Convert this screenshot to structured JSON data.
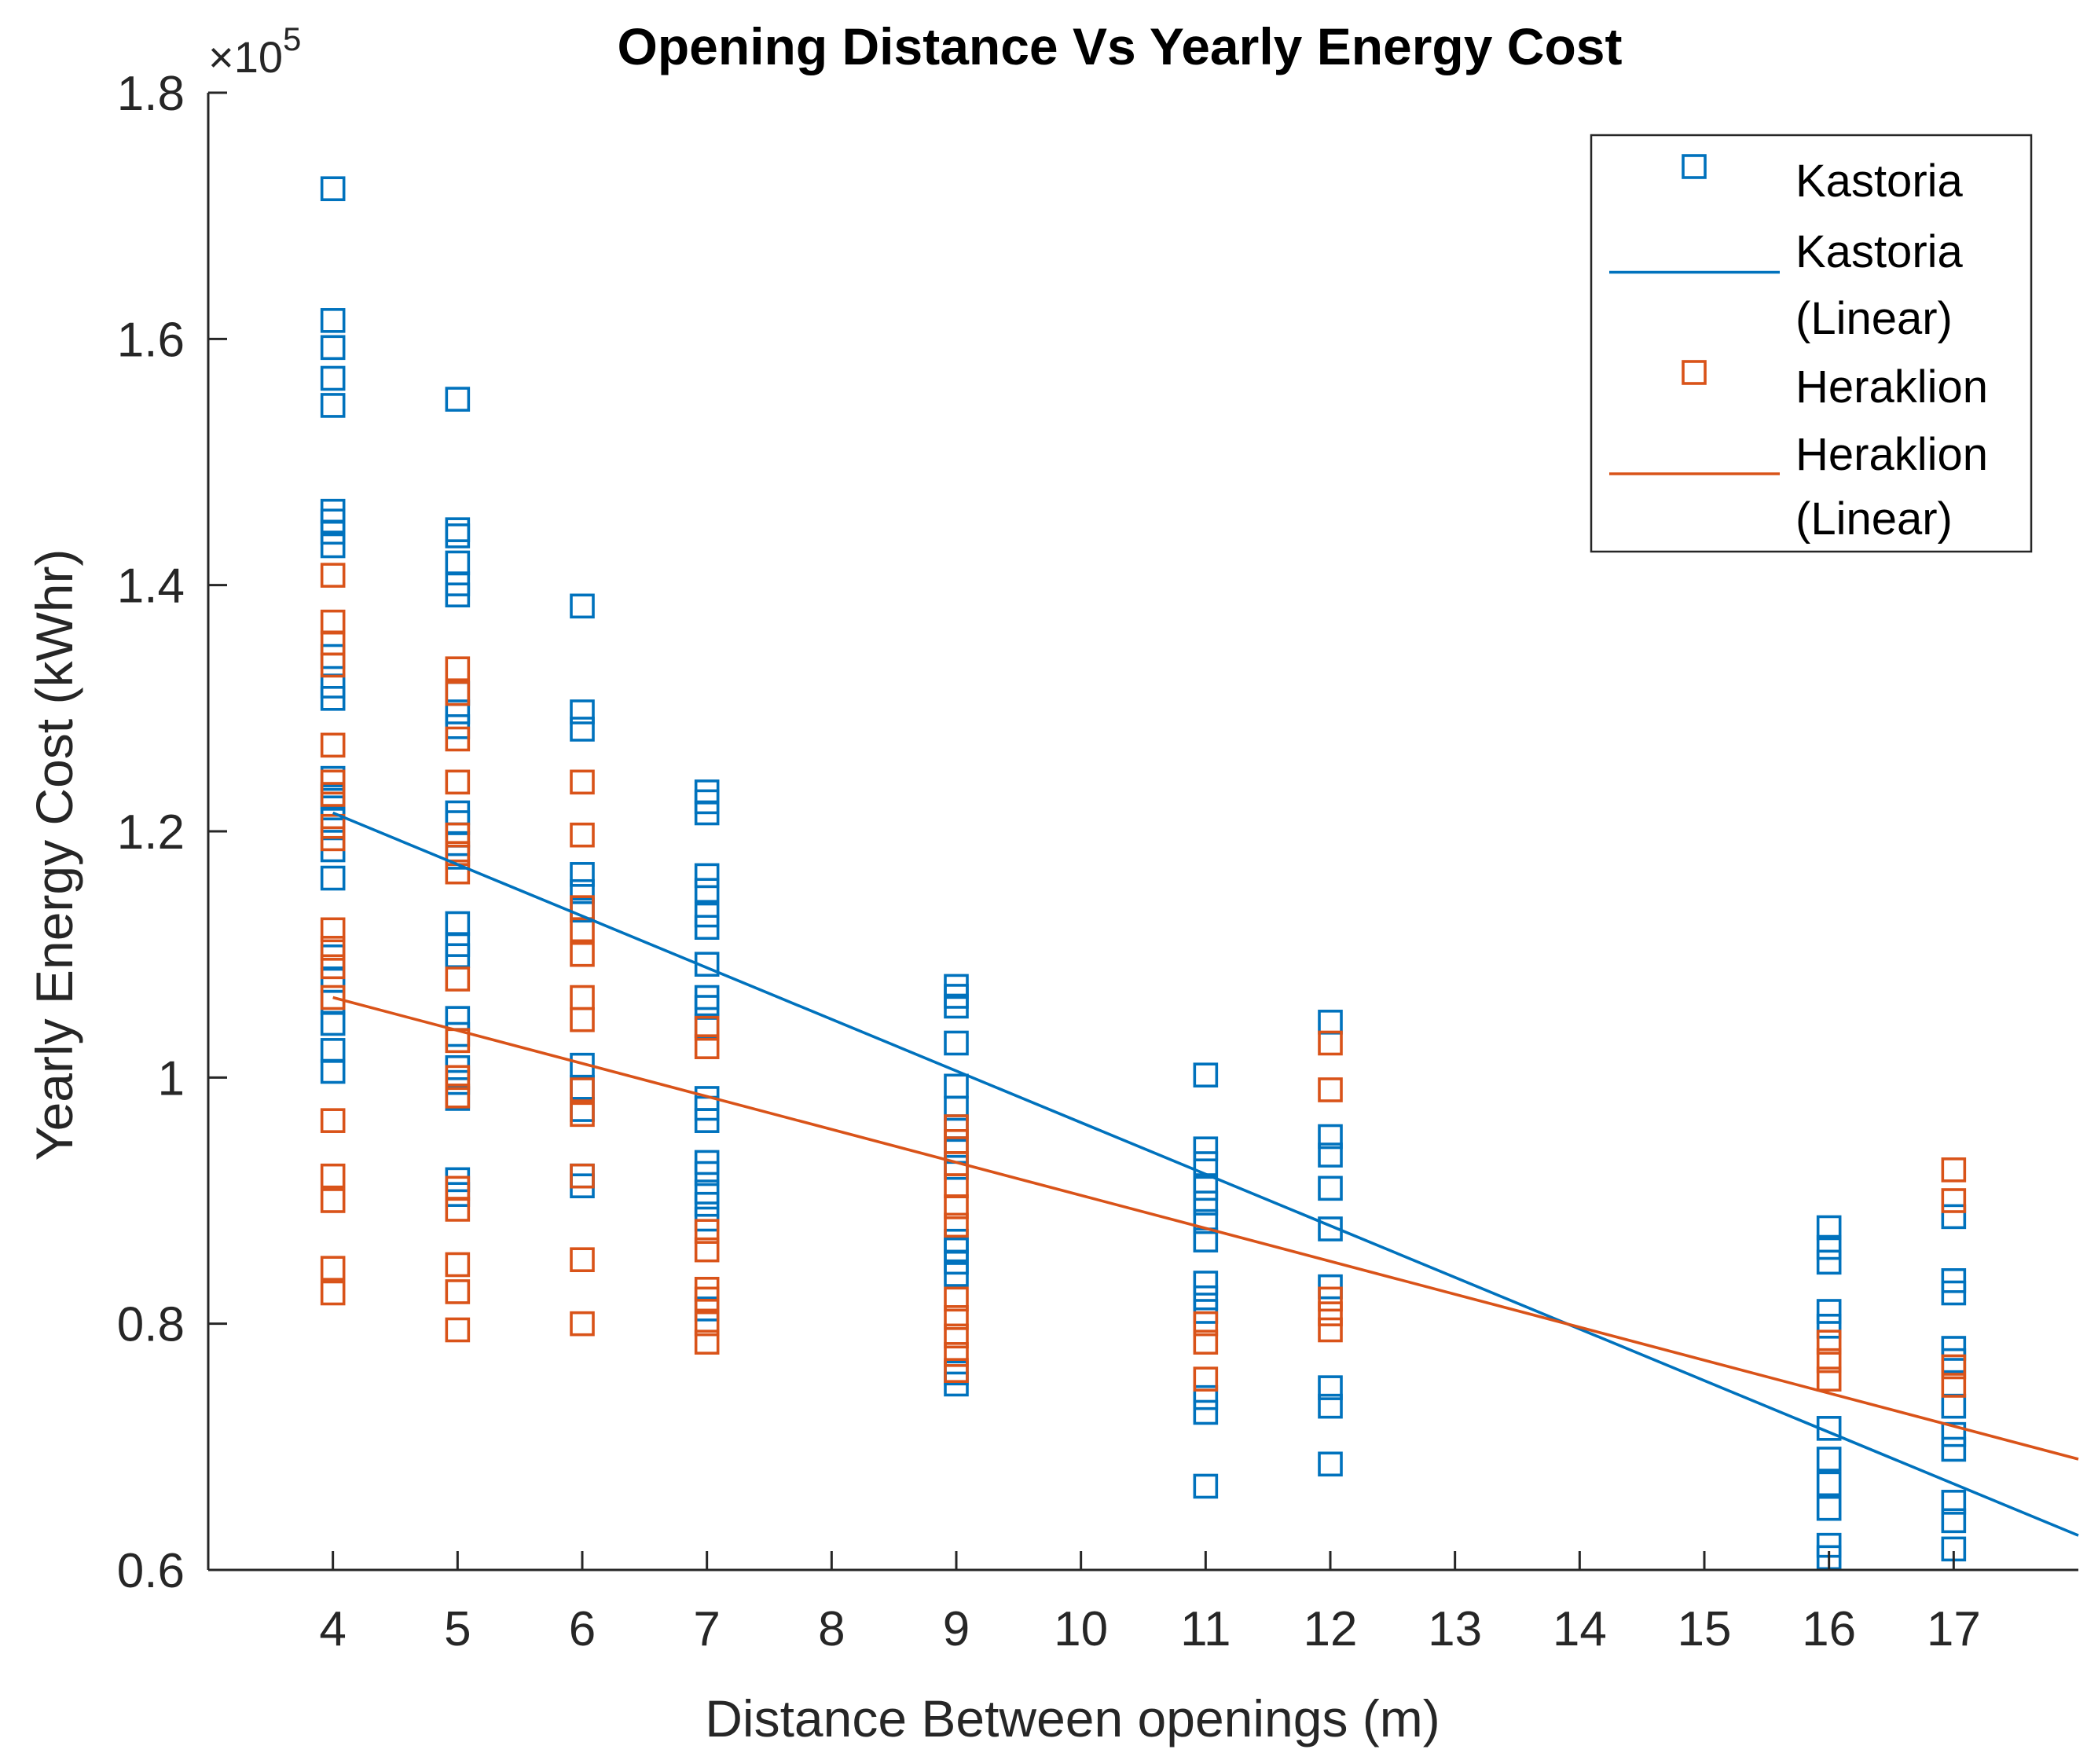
{
  "chart_data": {
    "type": "scatter",
    "title": "Opening Distance Vs Yearly Energy Cost",
    "xlabel": "Distance Between openings (m)",
    "ylabel": "Yearly Energy Cost (kWhr)",
    "exponent": {
      "base": "×10",
      "power": "5"
    },
    "xlim": [
      3,
      18
    ],
    "ylim": [
      0.6,
      1.8
    ],
    "xticks": [
      4,
      5,
      6,
      7,
      8,
      9,
      10,
      11,
      12,
      13,
      14,
      15,
      16,
      17
    ],
    "yticks": [
      0.6,
      0.8,
      1,
      1.2,
      1.4,
      1.6,
      1.8
    ],
    "ytick_labels": [
      "0.6",
      "0.8",
      "1",
      "1.2",
      "1.4",
      "1.6",
      "1.8"
    ],
    "colors": {
      "kastoria": "#0072BD",
      "heraklion": "#D95319"
    },
    "legend_position": "top-right",
    "legend": [
      {
        "key": "kastoria",
        "kind": "marker",
        "label": "Kastoria"
      },
      {
        "key": "kastoria",
        "kind": "line",
        "label": "Kastoria",
        "label2": "(Linear)"
      },
      {
        "key": "heraklion",
        "kind": "marker",
        "label": "Heraklion"
      },
      {
        "key": "heraklion",
        "kind": "line",
        "label": "Heraklion",
        "label2": "(Linear)"
      }
    ],
    "series": [
      {
        "name": "Kastoria",
        "key": "kastoria",
        "points": [
          [
            4,
            1.722
          ],
          [
            4,
            1.615
          ],
          [
            4,
            1.593
          ],
          [
            4,
            1.568
          ],
          [
            4,
            1.546
          ],
          [
            4,
            1.46
          ],
          [
            4,
            1.452
          ],
          [
            4,
            1.443
          ],
          [
            4,
            1.432
          ],
          [
            4,
            1.342
          ],
          [
            4,
            1.318
          ],
          [
            4,
            1.308
          ],
          [
            4,
            1.243
          ],
          [
            4,
            1.228
          ],
          [
            4,
            1.219
          ],
          [
            4,
            1.209
          ],
          [
            4,
            1.185
          ],
          [
            4,
            1.162
          ],
          [
            4,
            1.098
          ],
          [
            4,
            1.079
          ],
          [
            4,
            1.061
          ],
          [
            4,
            1.044
          ],
          [
            4,
            1.022
          ],
          [
            4,
            1.005
          ],
          [
            5,
            1.551
          ],
          [
            5,
            1.445
          ],
          [
            5,
            1.44
          ],
          [
            5,
            1.418
          ],
          [
            5,
            1.401
          ],
          [
            5,
            1.392
          ],
          [
            5,
            1.312
          ],
          [
            5,
            1.297
          ],
          [
            5,
            1.285
          ],
          [
            5,
            1.215
          ],
          [
            5,
            1.207
          ],
          [
            5,
            1.19
          ],
          [
            5,
            1.179
          ],
          [
            5,
            1.125
          ],
          [
            5,
            1.108
          ],
          [
            5,
            1.099
          ],
          [
            5,
            1.048
          ],
          [
            5,
            1.035
          ],
          [
            5,
            1.008
          ],
          [
            5,
            0.996
          ],
          [
            5,
            0.983
          ],
          [
            5,
            0.917
          ],
          [
            5,
            0.905
          ],
          [
            6,
            1.383
          ],
          [
            6,
            1.297
          ],
          [
            6,
            1.283
          ],
          [
            6,
            1.165
          ],
          [
            6,
            1.151
          ],
          [
            6,
            1.136
          ],
          [
            6,
            1.01
          ],
          [
            6,
            0.992
          ],
          [
            6,
            0.974
          ],
          [
            6,
            0.92
          ],
          [
            6,
            0.912
          ],
          [
            7,
            1.232
          ],
          [
            7,
            1.224
          ],
          [
            7,
            1.215
          ],
          [
            7,
            1.164
          ],
          [
            7,
            1.152
          ],
          [
            7,
            1.132
          ],
          [
            7,
            1.122
          ],
          [
            7,
            1.092
          ],
          [
            7,
            1.065
          ],
          [
            7,
            1.057
          ],
          [
            7,
            1.042
          ],
          [
            7,
            0.983
          ],
          [
            7,
            0.975
          ],
          [
            7,
            0.965
          ],
          [
            7,
            0.931
          ],
          [
            7,
            0.922
          ],
          [
            7,
            0.907
          ],
          [
            7,
            0.897
          ],
          [
            7,
            0.885
          ],
          [
            7,
            0.812
          ],
          [
            9,
            1.074
          ],
          [
            9,
            1.066
          ],
          [
            9,
            1.058
          ],
          [
            9,
            1.028
          ],
          [
            9,
            0.993
          ],
          [
            9,
            0.975
          ],
          [
            9,
            0.96
          ],
          [
            9,
            0.94
          ],
          [
            9,
            0.927
          ],
          [
            9,
            0.867
          ],
          [
            9,
            0.86
          ],
          [
            9,
            0.85
          ],
          [
            9,
            0.84
          ],
          [
            9,
            0.76
          ],
          [
            9,
            0.751
          ],
          [
            11,
            1.002
          ],
          [
            11,
            0.942
          ],
          [
            11,
            0.93
          ],
          [
            11,
            0.91
          ],
          [
            11,
            0.898
          ],
          [
            11,
            0.883
          ],
          [
            11,
            0.868
          ],
          [
            11,
            0.833
          ],
          [
            11,
            0.821
          ],
          [
            11,
            0.81
          ],
          [
            11,
            0.74
          ],
          [
            11,
            0.728
          ],
          [
            11,
            0.668
          ],
          [
            12,
            1.045
          ],
          [
            12,
            0.952
          ],
          [
            12,
            0.937
          ],
          [
            12,
            0.91
          ],
          [
            12,
            0.877
          ],
          [
            12,
            0.83
          ],
          [
            12,
            0.748
          ],
          [
            12,
            0.733
          ],
          [
            12,
            0.686
          ],
          [
            16,
            0.878
          ],
          [
            16,
            0.862
          ],
          [
            16,
            0.85
          ],
          [
            16,
            0.81
          ],
          [
            16,
            0.798
          ],
          [
            16,
            0.715
          ],
          [
            16,
            0.69
          ],
          [
            16,
            0.67
          ],
          [
            16,
            0.65
          ],
          [
            16,
            0.62
          ],
          [
            16,
            0.61
          ],
          [
            17,
            0.887
          ],
          [
            17,
            0.835
          ],
          [
            17,
            0.825
          ],
          [
            17,
            0.78
          ],
          [
            17,
            0.77
          ],
          [
            17,
            0.733
          ],
          [
            17,
            0.71
          ],
          [
            17,
            0.698
          ],
          [
            17,
            0.655
          ],
          [
            17,
            0.64
          ],
          [
            17,
            0.617
          ]
        ],
        "fit": {
          "x": [
            4,
            18
          ],
          "y": [
            1.215,
            0.628
          ]
        }
      },
      {
        "name": "Heraklion",
        "key": "heraklion",
        "points": [
          [
            4,
            1.408
          ],
          [
            4,
            1.37
          ],
          [
            4,
            1.353
          ],
          [
            4,
            1.335
          ],
          [
            4,
            1.27
          ],
          [
            4,
            1.24
          ],
          [
            4,
            1.23
          ],
          [
            4,
            1.204
          ],
          [
            4,
            1.194
          ],
          [
            4,
            1.12
          ],
          [
            4,
            1.105
          ],
          [
            4,
            1.09
          ],
          [
            4,
            1.065
          ],
          [
            4,
            0.965
          ],
          [
            4,
            0.92
          ],
          [
            4,
            0.9
          ],
          [
            4,
            0.845
          ],
          [
            4,
            0.825
          ],
          [
            5,
            1.332
          ],
          [
            5,
            1.312
          ],
          [
            5,
            1.275
          ],
          [
            5,
            1.24
          ],
          [
            5,
            1.197
          ],
          [
            5,
            1.182
          ],
          [
            5,
            1.167
          ],
          [
            5,
            1.08
          ],
          [
            5,
            1.03
          ],
          [
            5,
            1.0
          ],
          [
            5,
            0.985
          ],
          [
            5,
            0.91
          ],
          [
            5,
            0.893
          ],
          [
            5,
            0.848
          ],
          [
            5,
            0.826
          ],
          [
            5,
            0.795
          ],
          [
            6,
            1.24
          ],
          [
            6,
            1.197
          ],
          [
            6,
            1.138
          ],
          [
            6,
            1.12
          ],
          [
            6,
            1.1
          ],
          [
            6,
            1.065
          ],
          [
            6,
            1.047
          ],
          [
            6,
            0.99
          ],
          [
            6,
            0.97
          ],
          [
            6,
            0.92
          ],
          [
            6,
            0.852
          ],
          [
            6,
            0.8
          ],
          [
            7,
            1.04
          ],
          [
            7,
            1.025
          ],
          [
            7,
            0.875
          ],
          [
            7,
            0.86
          ],
          [
            7,
            0.828
          ],
          [
            7,
            0.82
          ],
          [
            7,
            0.8
          ],
          [
            7,
            0.785
          ],
          [
            9,
            0.96
          ],
          [
            9,
            0.948
          ],
          [
            9,
            0.93
          ],
          [
            9,
            0.912
          ],
          [
            9,
            0.895
          ],
          [
            9,
            0.88
          ],
          [
            9,
            0.82
          ],
          [
            9,
            0.805
          ],
          [
            9,
            0.79
          ],
          [
            9,
            0.775
          ],
          [
            9,
            0.762
          ],
          [
            11,
            0.8
          ],
          [
            11,
            0.785
          ],
          [
            11,
            0.755
          ],
          [
            12,
            1.028
          ],
          [
            12,
            0.99
          ],
          [
            12,
            0.82
          ],
          [
            12,
            0.808
          ],
          [
            12,
            0.795
          ],
          [
            16,
            0.785
          ],
          [
            16,
            0.77
          ],
          [
            16,
            0.755
          ],
          [
            17,
            0.925
          ],
          [
            17,
            0.9
          ],
          [
            17,
            0.765
          ],
          [
            17,
            0.75
          ]
        ],
        "fit": {
          "x": [
            4,
            18
          ],
          "y": [
            1.065,
            0.69
          ]
        }
      }
    ]
  }
}
